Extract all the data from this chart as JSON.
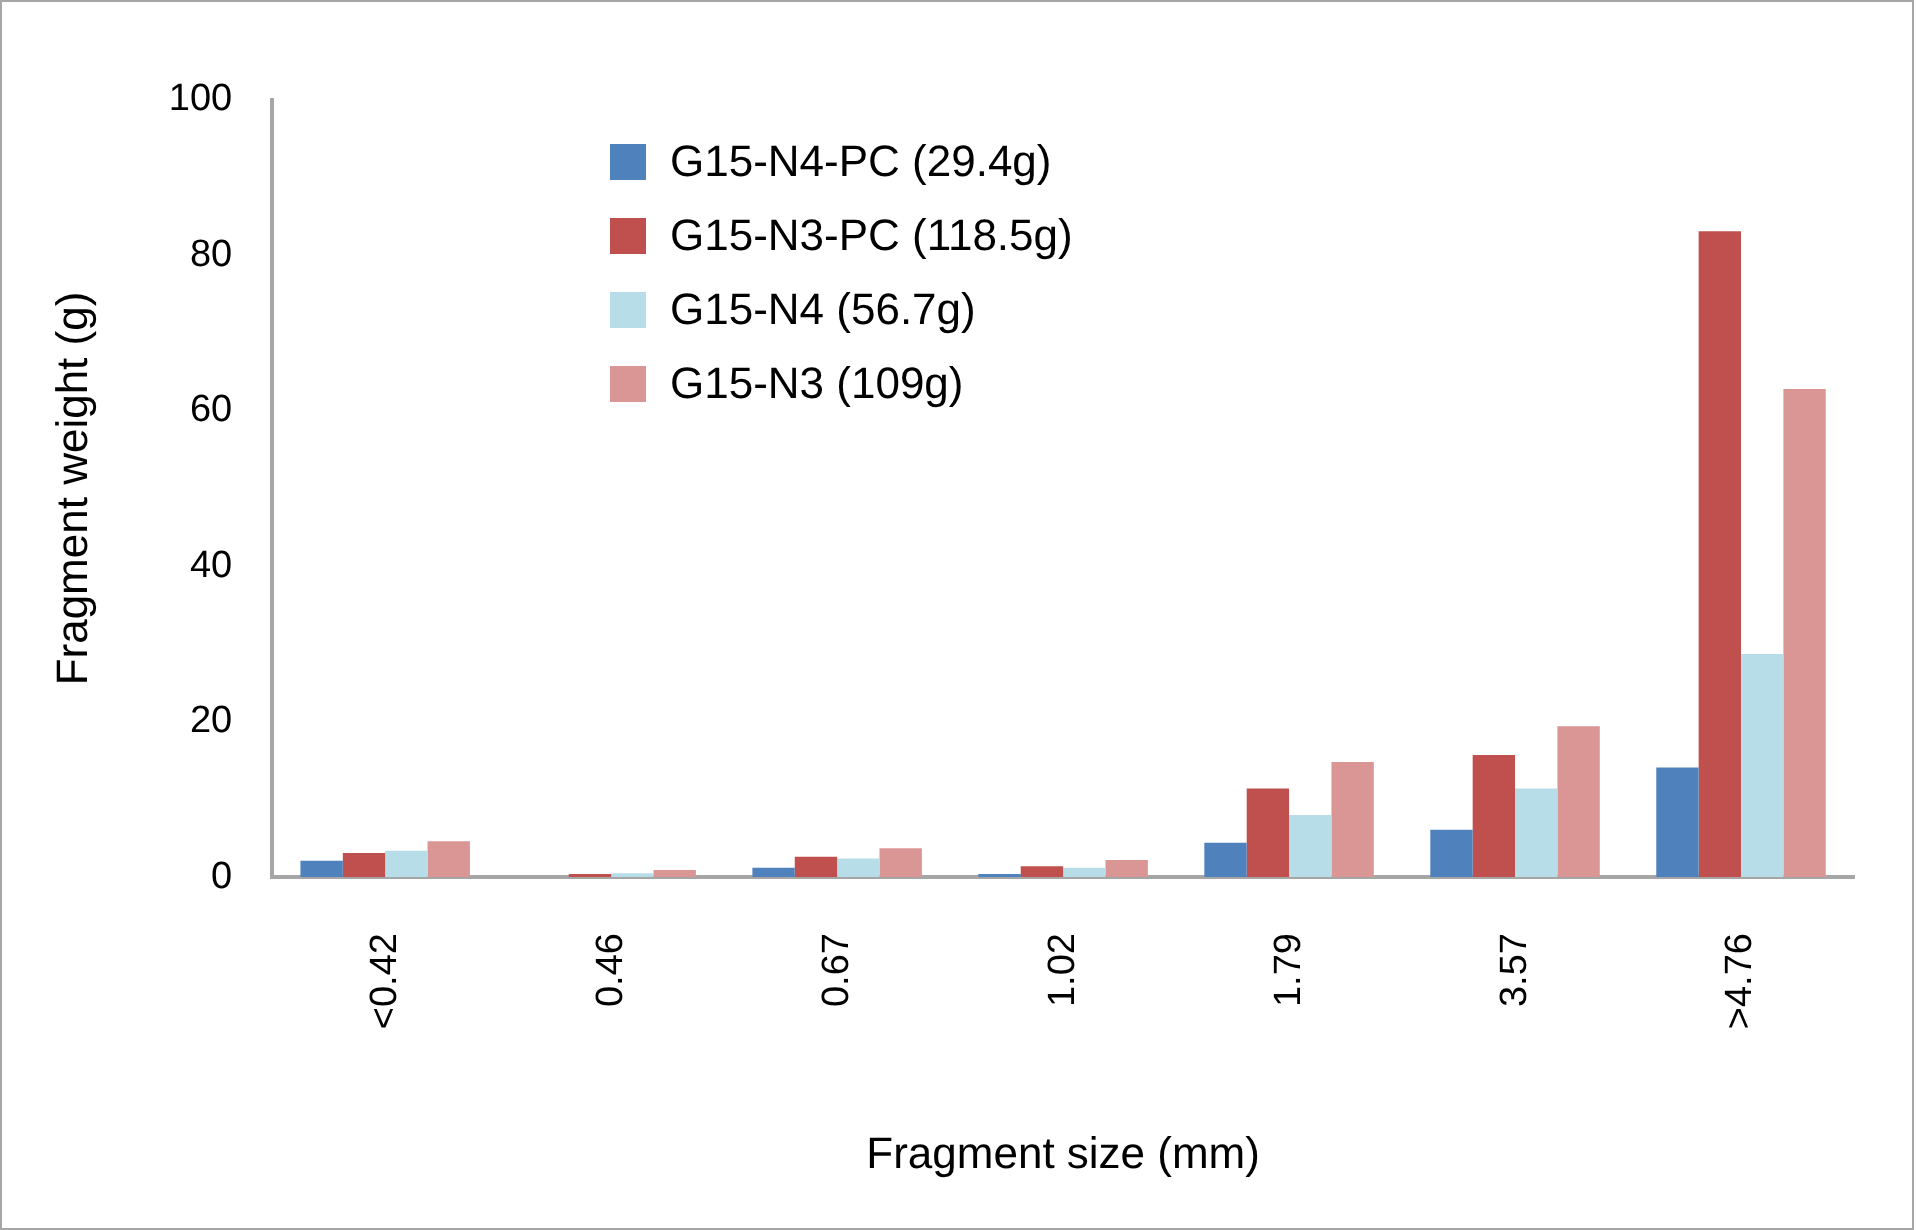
{
  "chart_data": {
    "type": "bar",
    "xlabel": "Fragment size (mm)",
    "ylabel": "Fragment weight (g)",
    "categories": [
      "<0.42",
      "0.46",
      "0.67",
      "1.02",
      "1.79",
      "3.57",
      ">4.76"
    ],
    "series": [
      {
        "name": "G15-N4-PC (29.4g)",
        "color": "#4f81bd",
        "values": [
          2.1,
          0,
          1.2,
          0.4,
          4.4,
          6.1,
          14.1
        ]
      },
      {
        "name": "G15-N3-PC (118.5g)",
        "color": "#c0504d",
        "values": [
          3.1,
          0.4,
          2.6,
          1.4,
          11.4,
          15.7,
          83.1
        ]
      },
      {
        "name": "G15-N4 (56.7g)",
        "color": "#b7dee8",
        "values": [
          3.4,
          0.5,
          2.4,
          1.2,
          8.0,
          11.4,
          28.7
        ]
      },
      {
        "name": "G15-N3 (109g)",
        "color": "#da9694",
        "values": [
          4.6,
          0.9,
          3.7,
          2.2,
          14.8,
          19.4,
          62.8
        ]
      }
    ],
    "ylim": [
      0,
      100
    ],
    "yticks": [
      0,
      20,
      40,
      60,
      80,
      100
    ],
    "grid": false,
    "legend": "top left"
  }
}
